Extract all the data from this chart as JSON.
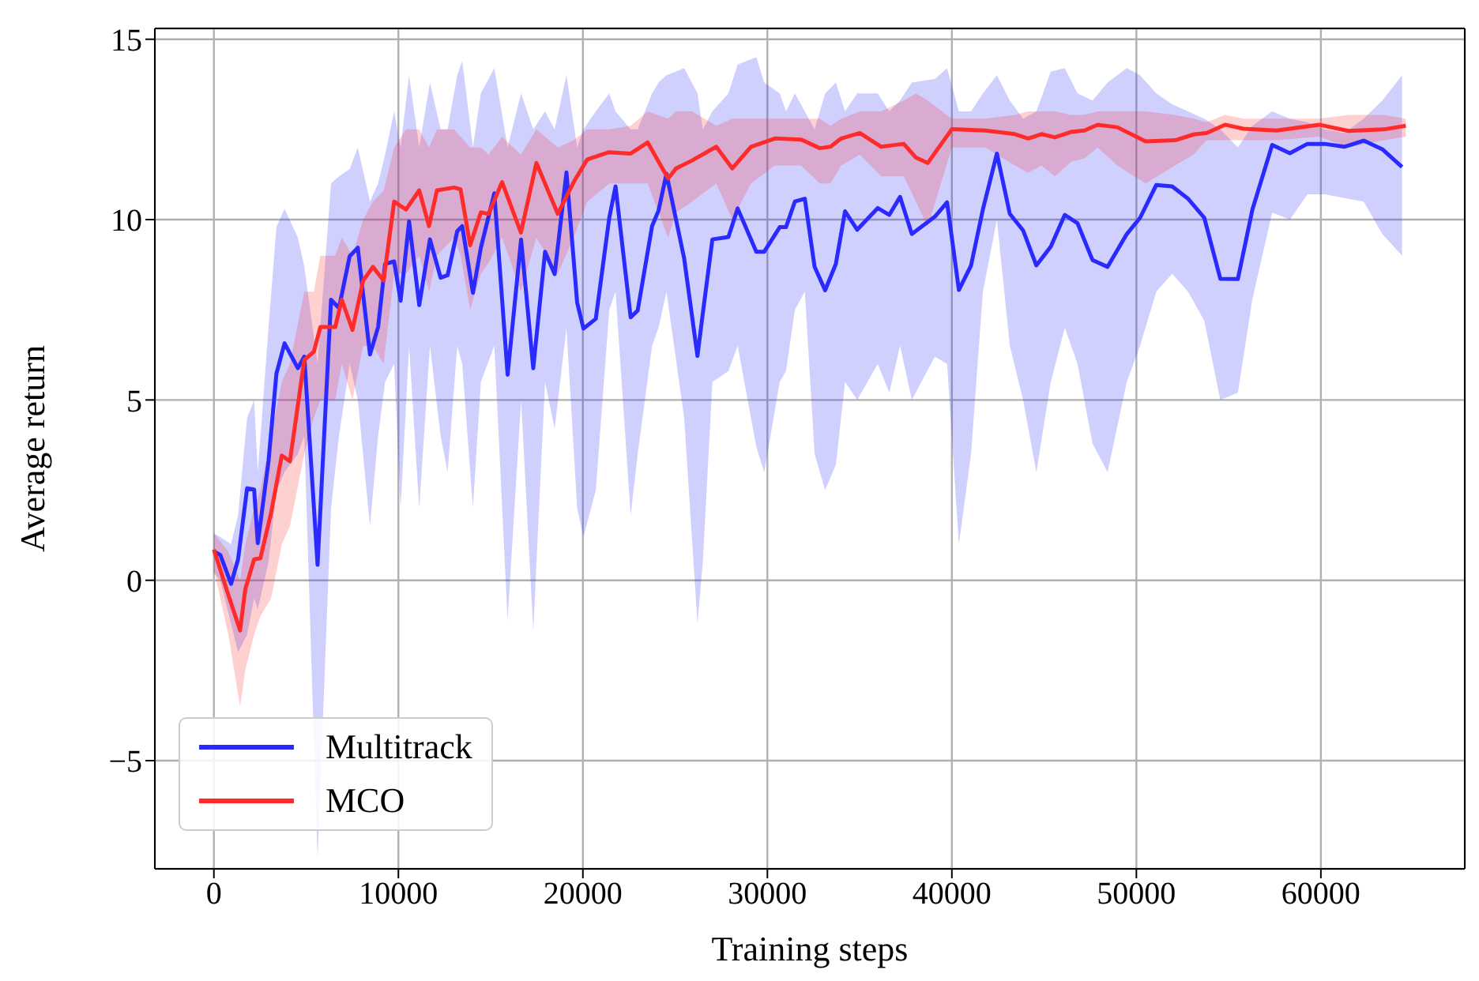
{
  "chart_data": {
    "type": "line",
    "xlabel": "Training steps",
    "ylabel": "Average return",
    "xlim": [
      -3200,
      67800
    ],
    "xticks": [
      0,
      10000,
      20000,
      30000,
      40000,
      50000,
      60000
    ],
    "ylim": [
      -8,
      15.3
    ],
    "yticks": [
      -5,
      0,
      5,
      10,
      15
    ],
    "grid": true,
    "legend": "bottom left",
    "line_style": "solid",
    "marker": "none",
    "series": [
      {
        "name": "Multitrack",
        "color": "#2a2aff",
        "x": [
          0,
          350,
          930,
          1310,
          1800,
          2180,
          2380,
          2960,
          3390,
          3830,
          4550,
          4900,
          5620,
          6350,
          6780,
          7360,
          7800,
          8460,
          8900,
          9280,
          9770,
          10120,
          10580,
          11130,
          11710,
          12290,
          12670,
          13190,
          13460,
          14040,
          14470,
          15200,
          15920,
          16650,
          17310,
          17950,
          18470,
          19110,
          19690,
          20030,
          20700,
          21430,
          21770,
          22590,
          22970,
          23750,
          24100,
          24530,
          25490,
          26210,
          26500,
          27020,
          27890,
          28390,
          29400,
          29830,
          30670,
          31010,
          31490,
          32030,
          32560,
          33130,
          33710,
          34210,
          34870,
          35980,
          36610,
          37190,
          37830,
          39080,
          39740,
          40380,
          41040,
          41680,
          42440,
          43140,
          43860,
          44580,
          45360,
          46120,
          46810,
          47620,
          48440,
          49480,
          50200,
          51080,
          51940,
          52800,
          53680,
          54550,
          55500,
          56290,
          57360,
          58320,
          59270,
          60200,
          61270,
          62320,
          63330,
          64400
        ],
        "values": [
          0.8,
          0.7,
          -0.1,
          0.58,
          2.55,
          2.52,
          1.03,
          3.3,
          5.73,
          6.57,
          5.88,
          6.2,
          0.43,
          7.78,
          7.55,
          8.99,
          9.22,
          6.26,
          7.02,
          8.77,
          8.84,
          7.75,
          9.95,
          7.63,
          9.45,
          8.39,
          8.46,
          9.68,
          9.82,
          7.97,
          9.22,
          10.73,
          5.7,
          9.45,
          5.88,
          9.11,
          8.49,
          11.31,
          7.7,
          6.98,
          7.25,
          10.05,
          10.92,
          7.29,
          7.48,
          9.82,
          10.25,
          11.27,
          8.92,
          6.22,
          7.4,
          9.45,
          9.52,
          10.31,
          9.11,
          9.11,
          9.79,
          9.79,
          10.5,
          10.58,
          8.69,
          8.04,
          8.77,
          10.23,
          9.72,
          10.32,
          10.13,
          10.63,
          9.6,
          10.08,
          10.48,
          8.05,
          8.73,
          10.28,
          11.83,
          10.16,
          9.7,
          8.73,
          9.25,
          10.13,
          9.9,
          8.88,
          8.69,
          9.6,
          10.05,
          10.96,
          10.92,
          10.58,
          10.05,
          8.36,
          8.35,
          10.28,
          12.07,
          11.84,
          12.1,
          12.1,
          12.02,
          12.19,
          11.95,
          11.46
        ],
        "lower": [
          0.2,
          0.0,
          -1.2,
          -2.0,
          -1.5,
          -0.5,
          -0.8,
          0.5,
          2.5,
          3.0,
          3.5,
          4.0,
          -7.7,
          2.0,
          4.0,
          6.0,
          5.0,
          1.5,
          4.0,
          5.5,
          6.0,
          2.0,
          6.5,
          2.0,
          6.5,
          4.0,
          3.0,
          6.5,
          6.0,
          2.0,
          5.5,
          6.5,
          -1.1,
          5.0,
          -1.4,
          5.5,
          4.2,
          7.0,
          2.0,
          1.2,
          2.5,
          7.5,
          8.0,
          1.8,
          3.5,
          6.5,
          7.0,
          8.0,
          4.5,
          -1.2,
          0.5,
          5.5,
          5.8,
          6.5,
          3.7,
          3.0,
          5.5,
          5.8,
          7.5,
          8.0,
          3.5,
          2.5,
          3.2,
          5.5,
          5.0,
          6.0,
          5.2,
          6.5,
          5.0,
          6.2,
          6.0,
          1.0,
          3.5,
          8.0,
          10.0,
          6.5,
          5.0,
          3.0,
          5.5,
          7.0,
          6.0,
          3.8,
          3.0,
          5.5,
          6.5,
          8.0,
          8.5,
          8.0,
          7.2,
          5.0,
          5.2,
          7.8,
          10.2,
          10.0,
          10.7,
          10.7,
          10.6,
          10.5,
          9.6,
          9.0
        ],
        "upper": [
          1.3,
          1.2,
          1.0,
          1.8,
          4.5,
          5.0,
          3.0,
          7.0,
          9.8,
          10.3,
          9.5,
          8.7,
          6.0,
          11.0,
          11.2,
          11.4,
          12.0,
          10.5,
          11.0,
          11.8,
          13.0,
          12.0,
          14.0,
          12.0,
          13.8,
          12.5,
          12.5,
          14.0,
          14.4,
          12.0,
          13.5,
          14.2,
          12.0,
          13.5,
          12.5,
          13.0,
          12.5,
          14.0,
          12.0,
          12.5,
          13.0,
          13.5,
          13.0,
          12.5,
          12.5,
          13.5,
          13.8,
          14.0,
          14.2,
          13.5,
          12.5,
          13.0,
          13.5,
          14.3,
          14.5,
          13.8,
          13.5,
          13.0,
          13.5,
          13.0,
          12.5,
          13.5,
          13.8,
          13.0,
          13.5,
          13.5,
          13.0,
          13.3,
          13.8,
          13.9,
          14.2,
          13.0,
          13.0,
          13.5,
          14.0,
          13.3,
          12.8,
          13.0,
          14.1,
          14.2,
          13.5,
          13.3,
          13.8,
          14.2,
          14.0,
          13.5,
          13.2,
          13.0,
          12.8,
          12.5,
          12.0,
          12.6,
          13.0,
          12.8,
          12.7,
          12.5,
          12.4,
          12.8,
          13.3,
          14.0
        ]
      },
      {
        "name": "MCO",
        "color": "#ff2a2a",
        "x": [
          0,
          780,
          1420,
          1700,
          2180,
          2520,
          3100,
          3680,
          4120,
          4900,
          5420,
          5770,
          6580,
          6930,
          7510,
          8090,
          8620,
          9200,
          9770,
          10410,
          11130,
          11660,
          12090,
          13020,
          13370,
          13890,
          14470,
          14890,
          15620,
          16640,
          17480,
          18640,
          19500,
          20240,
          21430,
          22590,
          23510,
          24620,
          25050,
          25920,
          27230,
          28100,
          29110,
          30410,
          31830,
          32840,
          33420,
          34000,
          35010,
          36170,
          37390,
          38050,
          38690,
          40000,
          41810,
          43410,
          44130,
          44860,
          45580,
          46450,
          47180,
          47900,
          48970,
          50500,
          52100,
          53100,
          53800,
          54800,
          55800,
          57600,
          59900,
          61500,
          63400,
          64600
        ],
        "values": [
          0.85,
          -0.4,
          -1.39,
          -0.25,
          0.58,
          0.61,
          1.87,
          3.46,
          3.3,
          6.11,
          6.34,
          7.02,
          7.02,
          7.78,
          6.94,
          8.31,
          8.69,
          8.31,
          10.5,
          10.28,
          10.81,
          9.82,
          10.81,
          10.89,
          10.84,
          9.29,
          10.2,
          10.16,
          11.04,
          9.64,
          11.57,
          10.16,
          11.04,
          11.67,
          11.87,
          11.83,
          12.14,
          11.14,
          11.42,
          11.64,
          12.02,
          11.42,
          12.02,
          12.25,
          12.22,
          11.98,
          12.02,
          12.25,
          12.4,
          12.02,
          12.1,
          11.72,
          11.57,
          12.51,
          12.47,
          12.37,
          12.25,
          12.37,
          12.28,
          12.43,
          12.47,
          12.63,
          12.56,
          12.17,
          12.2,
          12.36,
          12.4,
          12.63,
          12.52,
          12.47,
          12.63,
          12.46,
          12.5,
          12.6
        ],
        "lower": [
          0.3,
          -1.5,
          -3.5,
          -2.5,
          -1.5,
          -1.0,
          -0.5,
          1.0,
          1.5,
          3.5,
          4.5,
          5.0,
          5.0,
          6.0,
          5.0,
          6.5,
          6.5,
          6.0,
          8.5,
          8.5,
          9.0,
          8.0,
          9.0,
          9.5,
          9.0,
          7.5,
          8.5,
          8.8,
          9.5,
          8.0,
          9.5,
          8.5,
          9.5,
          10.5,
          11.0,
          11.0,
          11.0,
          9.5,
          10.2,
          10.5,
          11.0,
          10.0,
          11.0,
          11.5,
          11.5,
          11.0,
          11.0,
          11.5,
          11.8,
          11.2,
          11.2,
          10.5,
          9.8,
          12.0,
          12.0,
          11.5,
          11.3,
          11.5,
          11.2,
          11.6,
          11.7,
          12.0,
          11.5,
          11.0,
          11.5,
          11.8,
          12.2,
          12.2,
          12.2,
          12.2,
          12.3,
          12.0,
          12.2,
          12.3
        ],
        "upper": [
          1.3,
          0.8,
          0.0,
          1.0,
          2.0,
          2.5,
          4.0,
          5.5,
          6.0,
          8.0,
          8.0,
          9.0,
          9.0,
          9.5,
          9.0,
          10.0,
          10.5,
          10.8,
          12.0,
          12.5,
          12.5,
          12.0,
          12.5,
          12.5,
          12.3,
          12.0,
          12.0,
          11.8,
          12.3,
          11.8,
          12.5,
          12.0,
          12.2,
          12.5,
          12.5,
          12.6,
          13.0,
          12.8,
          13.0,
          13.0,
          12.6,
          12.8,
          12.8,
          12.8,
          12.8,
          12.8,
          12.6,
          12.8,
          13.0,
          13.0,
          13.3,
          13.5,
          13.3,
          12.8,
          12.8,
          12.9,
          13.0,
          13.0,
          13.0,
          12.9,
          12.9,
          13.0,
          13.0,
          13.0,
          12.9,
          12.8,
          12.7,
          12.9,
          12.8,
          12.8,
          12.8,
          12.9,
          12.9,
          12.8
        ]
      }
    ]
  }
}
